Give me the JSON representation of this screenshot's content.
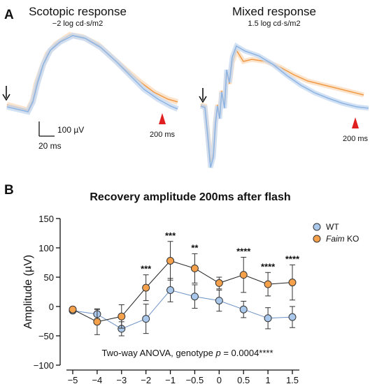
{
  "panel_a": {
    "letter": "A",
    "left": {
      "title": "Scotopic response",
      "subtitle": "−2 log cd·s/m2",
      "marker_label": "200 ms"
    },
    "right": {
      "title": "Mixed response",
      "subtitle": "1.5 log cd·s/m2",
      "marker_label": "200 ms"
    },
    "scale_y": "100 µV",
    "scale_x": "20 ms"
  },
  "panel_b": {
    "letter": "B"
  },
  "colors": {
    "wt": "#a9c8ec",
    "wt_edge": "#6a8fc4",
    "ko": "#f5a04a",
    "ko_edge": "#c8732a",
    "marker": "#e02020",
    "wt_trace": "#8db4e2",
    "ko_trace": "#f09a45"
  },
  "chart_data": {
    "type": "scatter",
    "title": "Recovery amplitude 200ms after flash",
    "xlabel": "",
    "ylabel": "Amplitude (µV)",
    "categories": [
      "−5",
      "−4",
      "−3",
      "−2",
      "−1",
      "−0.5",
      "0",
      "0.5",
      "1",
      "1.5"
    ],
    "ylim": [
      -100,
      150
    ],
    "yticks": [
      "−100",
      "−50",
      "0",
      "50",
      "100",
      "150"
    ],
    "ytick_values": [
      -100,
      -50,
      0,
      50,
      100,
      150
    ],
    "series": [
      {
        "name": "WT",
        "values": [
          -7,
          -13,
          -38,
          -21,
          28,
          17,
          10,
          -5,
          -20,
          -18
        ],
        "errors": [
          3,
          8,
          12,
          25,
          20,
          20,
          18,
          14,
          18,
          18
        ]
      },
      {
        "name": "Faim KO",
        "name_italic": "Faim",
        "name_rest": " KO",
        "values": [
          -5,
          -26,
          -17,
          32,
          78,
          65,
          40,
          54,
          38,
          41
        ],
        "errors": [
          3,
          22,
          20,
          22,
          33,
          25,
          10,
          30,
          20,
          30
        ]
      }
    ],
    "significance": [
      "",
      "",
      "",
      "***",
      "***",
      "**",
      "",
      "****",
      "****",
      "****"
    ],
    "annotation": "Two-way ANOVA, genotype ",
    "annotation_p": "p",
    "annotation_rest": " = 0.0004****",
    "legend_position": "top-right"
  }
}
